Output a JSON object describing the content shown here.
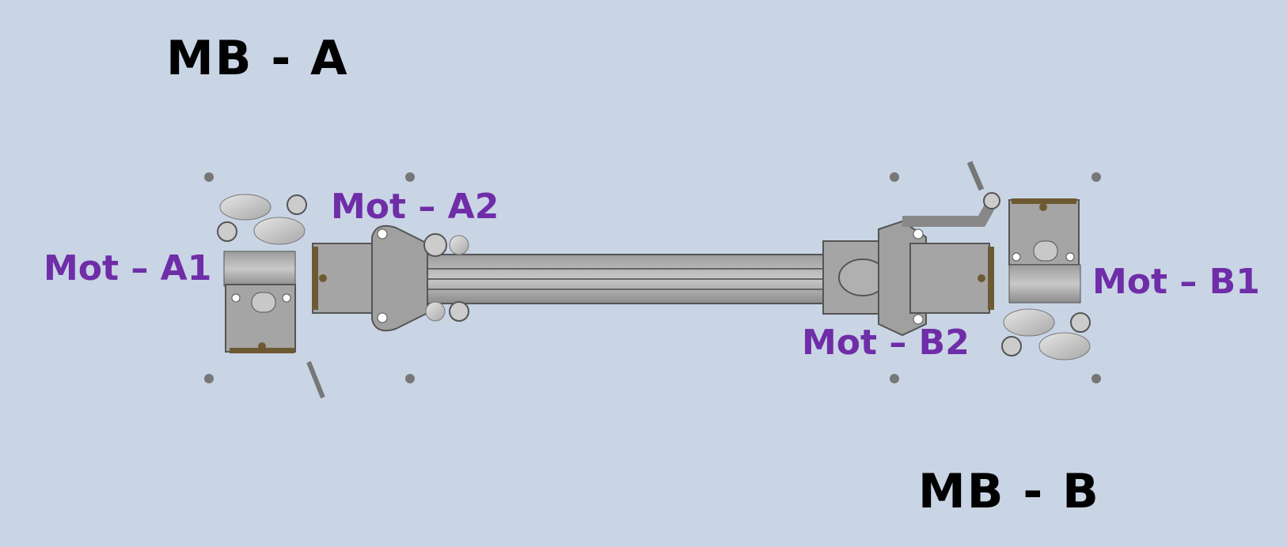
{
  "labels": {
    "mb_a": "MB - A",
    "mb_b": "MB - B",
    "mot_a1": "Mot – A1",
    "mot_a2": "Mot – A2",
    "mot_b1": "Mot – B1",
    "mot_b2": "Mot – B2"
  },
  "colors": {
    "background": "#c9d5e5",
    "title_text": "#000000",
    "motor_label_text": "#6f2da8",
    "metal_fill": "#a5a5a5",
    "metal_stroke": "#555555",
    "wheel_fill": "#d2d2d2",
    "plate_trim": "#6e5a32"
  }
}
